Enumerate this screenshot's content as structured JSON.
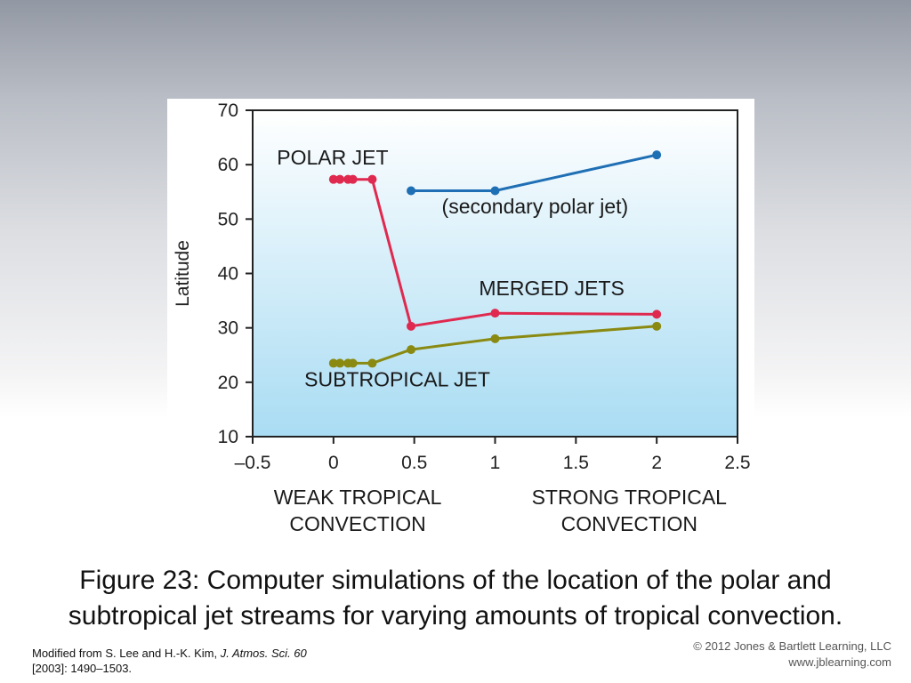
{
  "chart_data": {
    "type": "line",
    "ylabel": "Latitude",
    "xlim": [
      -0.5,
      2.5
    ],
    "ylim": [
      10,
      70
    ],
    "x_ticks": [
      "–0.5",
      "0",
      "0.5",
      "1",
      "1.5",
      "2",
      "2.5"
    ],
    "y_ticks": [
      "10",
      "20",
      "30",
      "40",
      "50",
      "60",
      "70"
    ],
    "x_ticks_values": [
      -0.5,
      0,
      0.5,
      1,
      1.5,
      2,
      2.5
    ],
    "y_ticks_values": [
      10,
      20,
      30,
      40,
      50,
      60,
      70
    ],
    "series": [
      {
        "color": "#e0294f",
        "x": [
          0,
          0.04,
          0.09,
          0.12,
          0.24,
          0.48,
          1.0,
          2.0
        ],
        "y": [
          57.3,
          57.3,
          57.3,
          57.3,
          57.3,
          30.3,
          32.7,
          32.5
        ]
      },
      {
        "color": "#1f6fb5",
        "x": [
          0.48,
          1.0,
          2.0
        ],
        "y": [
          55.2,
          55.2,
          61.8
        ]
      },
      {
        "color": "#8a8a12",
        "x": [
          0,
          0.04,
          0.09,
          0.12,
          0.24,
          0.48,
          1.0,
          2.0
        ],
        "y": [
          23.5,
          23.5,
          23.5,
          23.5,
          23.5,
          26.0,
          28.0,
          30.3
        ]
      }
    ],
    "annotations": [
      {
        "text": "POLAR JET",
        "x": -0.35,
        "y": 60
      },
      {
        "text": "(secondary polar jet)",
        "x": 0.67,
        "y": 51
      },
      {
        "text": "MERGED JETS",
        "x": 0.9,
        "y": 36
      },
      {
        "text": "SUBTROPICAL JET",
        "x": -0.18,
        "y": 19.2
      }
    ],
    "x_group_labels": [
      {
        "lines": [
          "WEAK TROPICAL",
          "CONVECTION"
        ],
        "x": 0.15
      },
      {
        "lines": [
          "STRONG TROPICAL",
          "CONVECTION"
        ],
        "x": 1.83
      }
    ],
    "colors": {
      "plot_gradient_top": "#ffffff",
      "plot_gradient_bottom": "#a9dcf3"
    },
    "grid": false
  },
  "caption": "Figure 23: Computer simulations of the location of the polar and subtropical jet streams for varying amounts of tropical convection.",
  "credit": {
    "prefix": "Modified from S. Lee and H.-K. Kim, ",
    "journal": "J. Atmos. Sci. 60",
    "suffix": "[2003]: 1490–1503."
  },
  "copyright": {
    "line1": "© 2012 Jones & Bartlett Learning, LLC",
    "line2": "www.jblearning.com"
  }
}
